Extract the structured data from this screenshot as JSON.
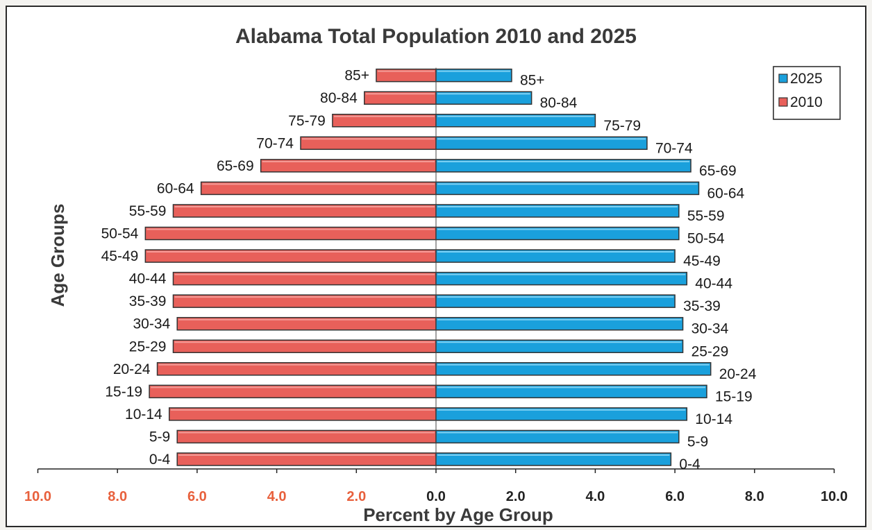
{
  "chart_data": {
    "type": "bar",
    "title": "Alabama Total Population 2010 and 2025",
    "xlabel": "Percent by Age Group",
    "ylabel": "Age Groups",
    "categories": [
      "0-4",
      "5-9",
      "10-14",
      "15-19",
      "20-24",
      "25-29",
      "30-34",
      "35-39",
      "40-44",
      "45-49",
      "50-54",
      "55-59",
      "60-64",
      "65-69",
      "70-74",
      "75-79",
      "80-84",
      "85+"
    ],
    "series": [
      {
        "name": "2025",
        "color": "#1aa0dc",
        "direction": "right",
        "values": [
          5.9,
          6.1,
          6.3,
          6.8,
          6.9,
          6.2,
          6.2,
          6.0,
          6.3,
          6.0,
          6.1,
          6.1,
          6.6,
          6.4,
          5.3,
          4.0,
          2.4,
          1.9
        ]
      },
      {
        "name": "2010",
        "color": "#e8605a",
        "direction": "left",
        "values": [
          6.5,
          6.5,
          6.7,
          7.2,
          7.0,
          6.6,
          6.5,
          6.6,
          6.6,
          7.3,
          7.3,
          6.6,
          5.9,
          4.4,
          3.4,
          2.6,
          1.8,
          1.5
        ]
      }
    ],
    "x_ticks": [
      "10.0",
      "8.0",
      "6.0",
      "4.0",
      "2.0",
      "0.0",
      "2.0",
      "4.0",
      "6.0",
      "8.0",
      "10.0"
    ],
    "xlim": [
      -10,
      10
    ],
    "tick_colors": {
      "left": "#e8603c",
      "right": "#222222"
    },
    "legend_placement": "top-right",
    "grid": false
  }
}
